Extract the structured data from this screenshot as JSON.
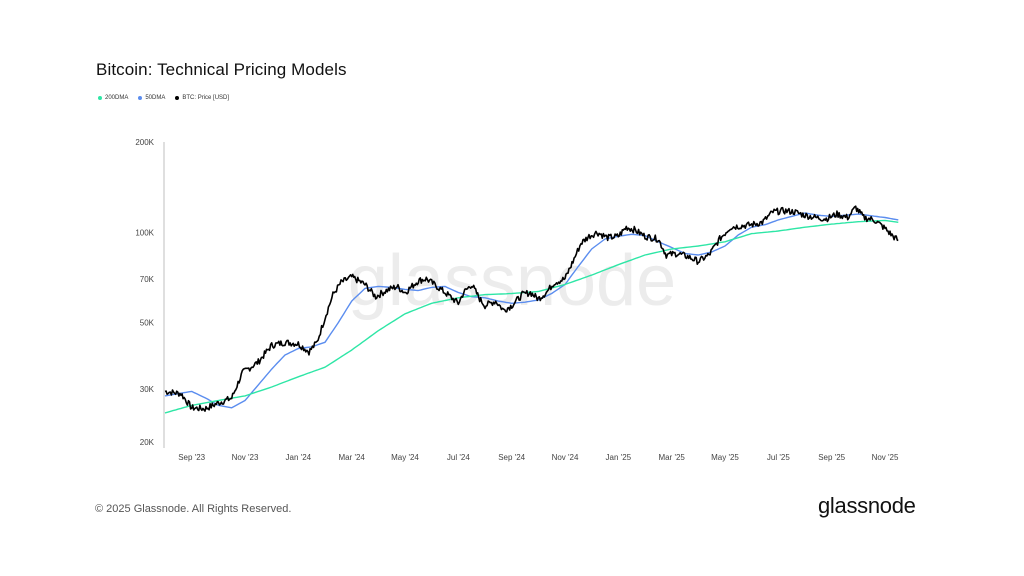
{
  "title": "Bitcoin: Technical Pricing Models",
  "legend": [
    {
      "label": "200DMA",
      "color": "#2ee6a6"
    },
    {
      "label": "50DMA",
      "color": "#5b8def"
    },
    {
      "label": "BTC: Price [USD]",
      "color": "#000000"
    }
  ],
  "watermark": "glassnode",
  "footer": {
    "copyright": "© 2025 Glassnode. All Rights Reserved.",
    "logo": "glassnode"
  },
  "chart_data": {
    "type": "line",
    "title": "Bitcoin: Technical Pricing Models",
    "y_scale": "log",
    "ylim": [
      20000,
      200000
    ],
    "y_ticks": [
      {
        "value": 200000,
        "label": "200K"
      },
      {
        "value": 100000,
        "label": "100K"
      },
      {
        "value": 70000,
        "label": "70K"
      },
      {
        "value": 50000,
        "label": "50K"
      },
      {
        "value": 30000,
        "label": "30K"
      },
      {
        "value": 20000,
        "label": "20K"
      }
    ],
    "x_range_months": [
      0,
      27.6
    ],
    "x_ticks": [
      {
        "t": 1,
        "label": "Sep '23"
      },
      {
        "t": 3,
        "label": "Nov '23"
      },
      {
        "t": 5,
        "label": "Jan '24"
      },
      {
        "t": 7,
        "label": "Mar '24"
      },
      {
        "t": 9,
        "label": "May '24"
      },
      {
        "t": 11,
        "label": "Jul '24"
      },
      {
        "t": 13,
        "label": "Sep '24"
      },
      {
        "t": 15,
        "label": "Nov '24"
      },
      {
        "t": 17,
        "label": "Jan '25"
      },
      {
        "t": 19,
        "label": "Mar '25"
      },
      {
        "t": 21,
        "label": "May '25"
      },
      {
        "t": 23,
        "label": "Jul '25"
      },
      {
        "t": 25,
        "label": "Sep '25"
      },
      {
        "t": 27,
        "label": "Nov '25"
      }
    ],
    "series": [
      {
        "name": "BTC: Price [USD]",
        "color": "#000000",
        "points": [
          [
            0,
            29500
          ],
          [
            0.6,
            29000
          ],
          [
            1,
            26000
          ],
          [
            1.5,
            25800
          ],
          [
            2,
            27000
          ],
          [
            2.5,
            28000
          ],
          [
            2.9,
            34000
          ],
          [
            3.5,
            37000
          ],
          [
            4,
            42000
          ],
          [
            4.5,
            43000
          ],
          [
            5,
            42500
          ],
          [
            5.4,
            40000
          ],
          [
            5.7,
            43000
          ],
          [
            6,
            52000
          ],
          [
            6.3,
            62000
          ],
          [
            6.6,
            68000
          ],
          [
            7,
            71000
          ],
          [
            7.5,
            67000
          ],
          [
            7.9,
            61000
          ],
          [
            8.3,
            64000
          ],
          [
            8.7,
            66000
          ],
          [
            9,
            63000
          ],
          [
            9.5,
            69000
          ],
          [
            9.8,
            70000
          ],
          [
            10.2,
            66000
          ],
          [
            10.6,
            62000
          ],
          [
            11,
            58000
          ],
          [
            11.2,
            63000
          ],
          [
            11.5,
            67000
          ],
          [
            11.8,
            60000
          ],
          [
            12,
            57000
          ],
          [
            12.4,
            59000
          ],
          [
            12.7,
            55000
          ],
          [
            13,
            57000
          ],
          [
            13.4,
            62000
          ],
          [
            13.7,
            63000
          ],
          [
            14,
            60000
          ],
          [
            14.3,
            63000
          ],
          [
            14.6,
            68000
          ],
          [
            15,
            70000
          ],
          [
            15.3,
            80000
          ],
          [
            15.6,
            92000
          ],
          [
            15.9,
            97000
          ],
          [
            16.2,
            100000
          ],
          [
            16.6,
            96000
          ],
          [
            17,
            97000
          ],
          [
            17.3,
            104000
          ],
          [
            17.6,
            102000
          ],
          [
            18,
            97000
          ],
          [
            18.5,
            95000
          ],
          [
            18.8,
            84000
          ],
          [
            19.2,
            85000
          ],
          [
            19.6,
            83000
          ],
          [
            20,
            80000
          ],
          [
            20.4,
            84000
          ],
          [
            20.8,
            95000
          ],
          [
            21.2,
            104000
          ],
          [
            21.6,
            105000
          ],
          [
            22,
            106000
          ],
          [
            22.4,
            108000
          ],
          [
            22.8,
            117000
          ],
          [
            23.2,
            118000
          ],
          [
            23.6,
            117000
          ],
          [
            24,
            114000
          ],
          [
            24.4,
            112000
          ],
          [
            24.8,
            111000
          ],
          [
            25.2,
            115000
          ],
          [
            25.6,
            112000
          ],
          [
            25.9,
            121000
          ],
          [
            26.2,
            112000
          ],
          [
            26.6,
            110000
          ],
          [
            27,
            103000
          ],
          [
            27.3,
            97000
          ],
          [
            27.5,
            94000
          ]
        ]
      },
      {
        "name": "50DMA",
        "color": "#5b8def",
        "points": [
          [
            0,
            28500
          ],
          [
            1,
            29500
          ],
          [
            1.6,
            27800
          ],
          [
            2,
            26500
          ],
          [
            2.5,
            26000
          ],
          [
            3,
            27500
          ],
          [
            3.5,
            31000
          ],
          [
            4,
            35000
          ],
          [
            4.5,
            39000
          ],
          [
            5,
            41000
          ],
          [
            5.5,
            41500
          ],
          [
            6,
            43000
          ],
          [
            6.5,
            50000
          ],
          [
            7,
            59000
          ],
          [
            7.5,
            65000
          ],
          [
            8,
            66000
          ],
          [
            8.5,
            65500
          ],
          [
            9,
            64500
          ],
          [
            9.5,
            64000
          ],
          [
            10,
            65500
          ],
          [
            10.5,
            66000
          ],
          [
            11,
            63000
          ],
          [
            11.5,
            61000
          ],
          [
            12,
            60500
          ],
          [
            12.5,
            59000
          ],
          [
            13,
            58000
          ],
          [
            13.5,
            58500
          ],
          [
            14,
            59500
          ],
          [
            14.5,
            62500
          ],
          [
            15,
            67000
          ],
          [
            15.5,
            77000
          ],
          [
            16,
            88000
          ],
          [
            16.5,
            95000
          ],
          [
            17,
            97000
          ],
          [
            17.5,
            98500
          ],
          [
            18,
            97500
          ],
          [
            18.5,
            93000
          ],
          [
            19,
            89000
          ],
          [
            19.5,
            85000
          ],
          [
            20,
            84000
          ],
          [
            20.5,
            86000
          ],
          [
            21,
            90000
          ],
          [
            21.5,
            98000
          ],
          [
            22,
            104000
          ],
          [
            22.5,
            106000
          ],
          [
            23,
            110000
          ],
          [
            23.5,
            113000
          ],
          [
            24,
            116000
          ],
          [
            24.5,
            114000
          ],
          [
            25,
            113000
          ],
          [
            25.5,
            114000
          ],
          [
            26,
            115000
          ],
          [
            26.5,
            113500
          ],
          [
            27,
            112000
          ],
          [
            27.5,
            110000
          ]
        ]
      },
      {
        "name": "200DMA",
        "color": "#2ee6a6",
        "points": [
          [
            0,
            25000
          ],
          [
            1,
            26500
          ],
          [
            2,
            27500
          ],
          [
            3,
            28500
          ],
          [
            4,
            30500
          ],
          [
            5,
            33000
          ],
          [
            6,
            35500
          ],
          [
            7,
            40500
          ],
          [
            8,
            47000
          ],
          [
            9,
            53500
          ],
          [
            10,
            58000
          ],
          [
            11,
            60500
          ],
          [
            12,
            62000
          ],
          [
            13,
            62500
          ],
          [
            14,
            63500
          ],
          [
            15,
            67000
          ],
          [
            16,
            72000
          ],
          [
            17,
            78000
          ],
          [
            18,
            84000
          ],
          [
            19,
            88000
          ],
          [
            20,
            90000
          ],
          [
            21,
            93000
          ],
          [
            22,
            99000
          ],
          [
            23,
            101000
          ],
          [
            24,
            104000
          ],
          [
            25,
            106500
          ],
          [
            26,
            108500
          ],
          [
            27,
            109500
          ],
          [
            27.5,
            108000
          ]
        ]
      }
    ]
  }
}
